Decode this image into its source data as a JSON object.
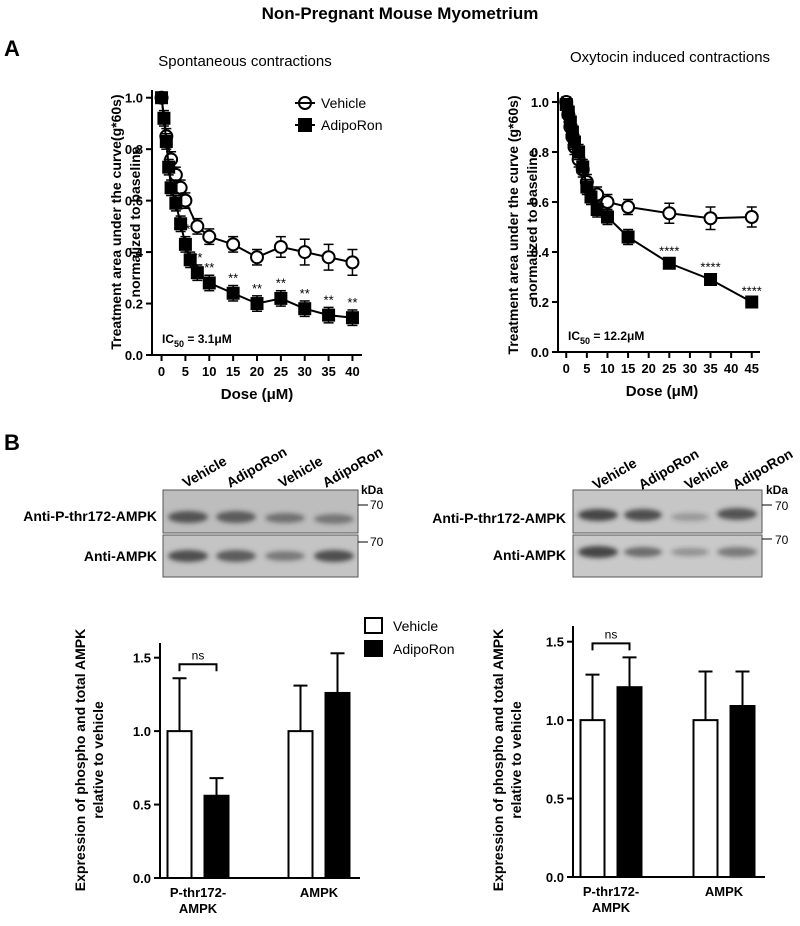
{
  "title": "Non-Pregnant Mouse Myometrium",
  "panel_labels": [
    "A",
    "B"
  ],
  "blots": [
    {
      "lanes": [
        "Vehicle",
        "AdipoRon",
        "Vehicle",
        "AdipoRon"
      ],
      "rows": [
        "Anti-P-thr172-AMPK",
        "Anti-AMPK"
      ],
      "unit": "kDa",
      "markers": [
        70,
        70
      ]
    },
    {
      "lanes": [
        "Vehicle",
        "AdipoRon",
        "Vehicle",
        "AdipoRon"
      ],
      "rows": [
        "Anti-P-thr172-AMPK",
        "Anti-AMPK"
      ],
      "unit": "kDa",
      "markers": [
        70,
        70
      ]
    }
  ],
  "chart_data": [
    {
      "type": "line",
      "subtitle": "Spontaneous contractions",
      "xlabel": "Dose (μM)",
      "ylabel": [
        "Treatment area under the curve(g*60s)",
        "normalized to baseline"
      ],
      "annotation": {
        "main": "IC",
        "subscript": "50",
        "rest": " = 3.1μM"
      },
      "xlim": [
        -2,
        42
      ],
      "xticks": [
        0,
        5,
        10,
        15,
        20,
        25,
        30,
        35,
        40
      ],
      "ylim": [
        0,
        1.03
      ],
      "yticks": [
        {
          "value": 0,
          "label": "0.0"
        },
        0.2,
        0.4,
        0.6,
        0.8,
        {
          "value": 1,
          "label": "1.0"
        }
      ],
      "legend": "upper right",
      "series": [
        {
          "name": "Vehicle",
          "marker": "circle",
          "color": "#000000",
          "fill": "#ffffff",
          "x": [
            0,
            1,
            2,
            3,
            4,
            5,
            7.5,
            10,
            15,
            20,
            25,
            30,
            35,
            40
          ],
          "values": [
            1.0,
            0.85,
            0.76,
            0.7,
            0.65,
            0.6,
            0.5,
            0.46,
            0.43,
            0.38,
            0.42,
            0.4,
            0.38,
            0.36
          ],
          "errors": [
            0.02,
            0.03,
            0.03,
            0.03,
            0.03,
            0.03,
            0.03,
            0.03,
            0.03,
            0.03,
            0.04,
            0.05,
            0.05,
            0.05
          ]
        },
        {
          "name": "AdipoRon",
          "marker": "square",
          "color": "#000000",
          "fill": "#000000",
          "x": [
            0,
            0.5,
            1,
            1.5,
            2,
            3,
            4,
            5,
            6,
            7.5,
            10,
            15,
            20,
            25,
            30,
            35,
            40
          ],
          "values": [
            1.0,
            0.92,
            0.83,
            0.73,
            0.65,
            0.59,
            0.51,
            0.43,
            0.37,
            0.32,
            0.28,
            0.24,
            0.2,
            0.22,
            0.18,
            0.155,
            0.145
          ],
          "errors": [
            0.02,
            0.03,
            0.03,
            0.03,
            0.03,
            0.03,
            0.03,
            0.03,
            0.03,
            0.03,
            0.03,
            0.03,
            0.03,
            0.03,
            0.03,
            0.03,
            0.03
          ],
          "significance": [
            null,
            null,
            null,
            null,
            null,
            null,
            "*",
            "**",
            null,
            "**",
            "**",
            "**",
            "**",
            "**",
            "**",
            "**",
            "**"
          ]
        }
      ]
    },
    {
      "type": "line",
      "subtitle": "Oxytocin induced contractions",
      "xlabel": "Dose (μM)",
      "ylabel": [
        "Treatment area under the curve (g*60s)",
        "normalized to baseline"
      ],
      "annotation": {
        "main": "IC",
        "subscript": "50",
        "rest": " = 12.2μM"
      },
      "xlim": [
        -2,
        47
      ],
      "xticks": [
        0,
        5,
        10,
        15,
        20,
        25,
        30,
        35,
        40,
        45
      ],
      "ylim": [
        0,
        1.04
      ],
      "yticks": [
        {
          "value": 0,
          "label": "0.0"
        },
        0.2,
        0.4,
        0.6,
        0.8,
        {
          "value": 1,
          "label": "1.0"
        }
      ],
      "series": [
        {
          "marker": "circle",
          "color": "#000000",
          "fill": "#ffffff",
          "x": [
            0,
            0.5,
            1,
            1.5,
            2,
            3,
            4,
            5,
            7.5,
            10,
            15,
            25,
            35,
            45
          ],
          "values": [
            1.0,
            0.95,
            0.9,
            0.86,
            0.82,
            0.77,
            0.73,
            0.68,
            0.63,
            0.6,
            0.58,
            0.555,
            0.535,
            0.54
          ],
          "errors": [
            0.02,
            0.03,
            0.03,
            0.03,
            0.03,
            0.03,
            0.03,
            0.03,
            0.03,
            0.03,
            0.03,
            0.04,
            0.045,
            0.04
          ]
        },
        {
          "marker": "square",
          "color": "#000000",
          "fill": "#000000",
          "x": [
            0,
            0.5,
            1,
            1.5,
            2,
            3,
            4,
            5,
            6,
            7.5,
            10,
            15,
            25,
            35,
            45
          ],
          "values": [
            0.99,
            0.96,
            0.92,
            0.88,
            0.84,
            0.8,
            0.74,
            0.66,
            0.62,
            0.57,
            0.54,
            0.46,
            0.355,
            0.29,
            0.2
          ],
          "errors": [
            0.02,
            0.03,
            0.03,
            0.03,
            0.03,
            0.03,
            0.03,
            0.03,
            0.03,
            0.03,
            0.03,
            0.03,
            0.02,
            0.02,
            0.015
          ],
          "significance": [
            null,
            null,
            null,
            null,
            null,
            null,
            null,
            null,
            null,
            null,
            null,
            null,
            "****",
            "****",
            "****"
          ]
        }
      ]
    },
    {
      "type": "bar",
      "ylabel": [
        "Expression of phospho and total AMPK",
        "relative to vehicle"
      ],
      "categories": [
        [
          "P-thr172-",
          "AMPK"
        ],
        [
          "AMPK"
        ]
      ],
      "ylim": [
        0,
        1.6
      ],
      "yticks": [
        {
          "value": 0,
          "label": "0.0"
        },
        0.5,
        {
          "value": 1,
          "label": "1.0"
        },
        1.5
      ],
      "legend": "upper right",
      "comparison": "ns",
      "series": [
        {
          "name": "Vehicle",
          "color": "#ffffff",
          "values": [
            1.0,
            1.0
          ],
          "errors": [
            0.36,
            0.31
          ]
        },
        {
          "name": "AdipoRon",
          "color": "#000000",
          "values": [
            0.56,
            1.26
          ],
          "errors": [
            0.12,
            0.27
          ]
        }
      ]
    },
    {
      "type": "bar",
      "ylabel": [
        "Expression of phospho and total AMPK",
        "relative to vehicle"
      ],
      "categories": [
        [
          "P-thr172-",
          "AMPK"
        ],
        [
          "AMPK"
        ]
      ],
      "ylim": [
        0,
        1.6
      ],
      "yticks": [
        {
          "value": 0,
          "label": "0.0"
        },
        0.5,
        {
          "value": 1,
          "label": "1.0"
        },
        1.5
      ],
      "comparison": "ns",
      "series": [
        {
          "color": "#ffffff",
          "values": [
            1.0,
            1.0
          ],
          "errors": [
            0.29,
            0.31
          ]
        },
        {
          "color": "#000000",
          "values": [
            1.21,
            1.09
          ],
          "errors": [
            0.19,
            0.22
          ]
        }
      ]
    }
  ]
}
